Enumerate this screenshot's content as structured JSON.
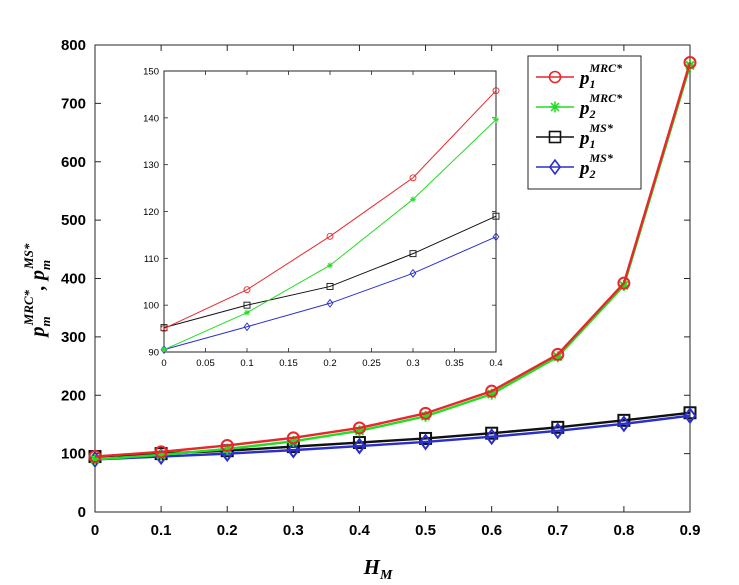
{
  "chart_data": [
    {
      "name": "main",
      "type": "line",
      "title": "",
      "xlabel": "H",
      "xlabel_sub": "M",
      "ylabel_parts": [
        {
          "base": "p",
          "sub": "m",
          "sup": "MRC*"
        },
        {
          "sep": ", "
        },
        {
          "base": "p",
          "sub": "m",
          "sup": "MS*"
        }
      ],
      "x": [
        0,
        0.1,
        0.2,
        0.3,
        0.4,
        0.5,
        0.6,
        0.7,
        0.8,
        0.9
      ],
      "xlim": [
        0,
        0.9
      ],
      "ylim": [
        0,
        800
      ],
      "xticks": [
        "0",
        "0.1",
        "0.2",
        "0.3",
        "0.4",
        "0.5",
        "0.6",
        "0.7",
        "0.8",
        "0.9"
      ],
      "yticks": [
        "0",
        "100",
        "200",
        "300",
        "400",
        "500",
        "600",
        "700",
        "800"
      ],
      "grid": false,
      "legend_position": "top-right",
      "series": [
        {
          "key": "p1_mrc",
          "base": "p",
          "sub": "1",
          "sup": "MRC*",
          "color": "#e8272b",
          "marker": "circle",
          "values": [
            95,
            103,
            114,
            127,
            144,
            169,
            207,
            270,
            392,
            770
          ]
        },
        {
          "key": "p2_mrc",
          "base": "p",
          "sub": "2",
          "sup": "MRC*",
          "color": "#22dd22",
          "marker": "asterisk",
          "values": [
            90,
            98,
            108,
            121,
            139,
            164,
            202,
            266,
            388,
            765
          ]
        },
        {
          "key": "p1_ms",
          "base": "p",
          "sub": "1",
          "sup": "MS*",
          "color": "#111111",
          "marker": "square",
          "values": [
            95,
            100,
            105,
            112,
            119,
            126,
            135,
            145,
            157,
            170
          ]
        },
        {
          "key": "p2_ms",
          "base": "p",
          "sub": "2",
          "sup": "MS*",
          "color": "#2a2fcc",
          "marker": "diamond",
          "values": [
            90,
            95,
            100,
            106,
            113,
            120,
            129,
            139,
            151,
            165
          ]
        }
      ]
    },
    {
      "name": "inset",
      "type": "line",
      "x": [
        0,
        0.1,
        0.2,
        0.3,
        0.4
      ],
      "xlim": [
        0,
        0.4
      ],
      "ylim": [
        90,
        150
      ],
      "xticks": [
        "0",
        "0.05",
        "0.1",
        "0.15",
        "0.2",
        "0.25",
        "0.3",
        "0.35",
        "0.4"
      ],
      "yticks": [
        "90",
        "100",
        "110",
        "120",
        "130",
        "140",
        "150"
      ],
      "series": [
        {
          "key": "p1_mrc",
          "color": "#e8272b",
          "marker": "circle",
          "values": [
            95,
            103.3,
            114.7,
            127.2,
            145.8
          ]
        },
        {
          "key": "p2_mrc",
          "color": "#22dd22",
          "marker": "asterisk",
          "values": [
            90.5,
            98.4,
            108.5,
            122.6,
            139.6
          ]
        },
        {
          "key": "p1_ms",
          "color": "#111111",
          "marker": "square",
          "values": [
            95.2,
            100,
            104,
            111,
            119
          ]
        },
        {
          "key": "p2_ms",
          "color": "#2a2fcc",
          "marker": "diamond",
          "values": [
            90.5,
            95.4,
            100.4,
            106.8,
            114.6
          ]
        }
      ]
    }
  ]
}
